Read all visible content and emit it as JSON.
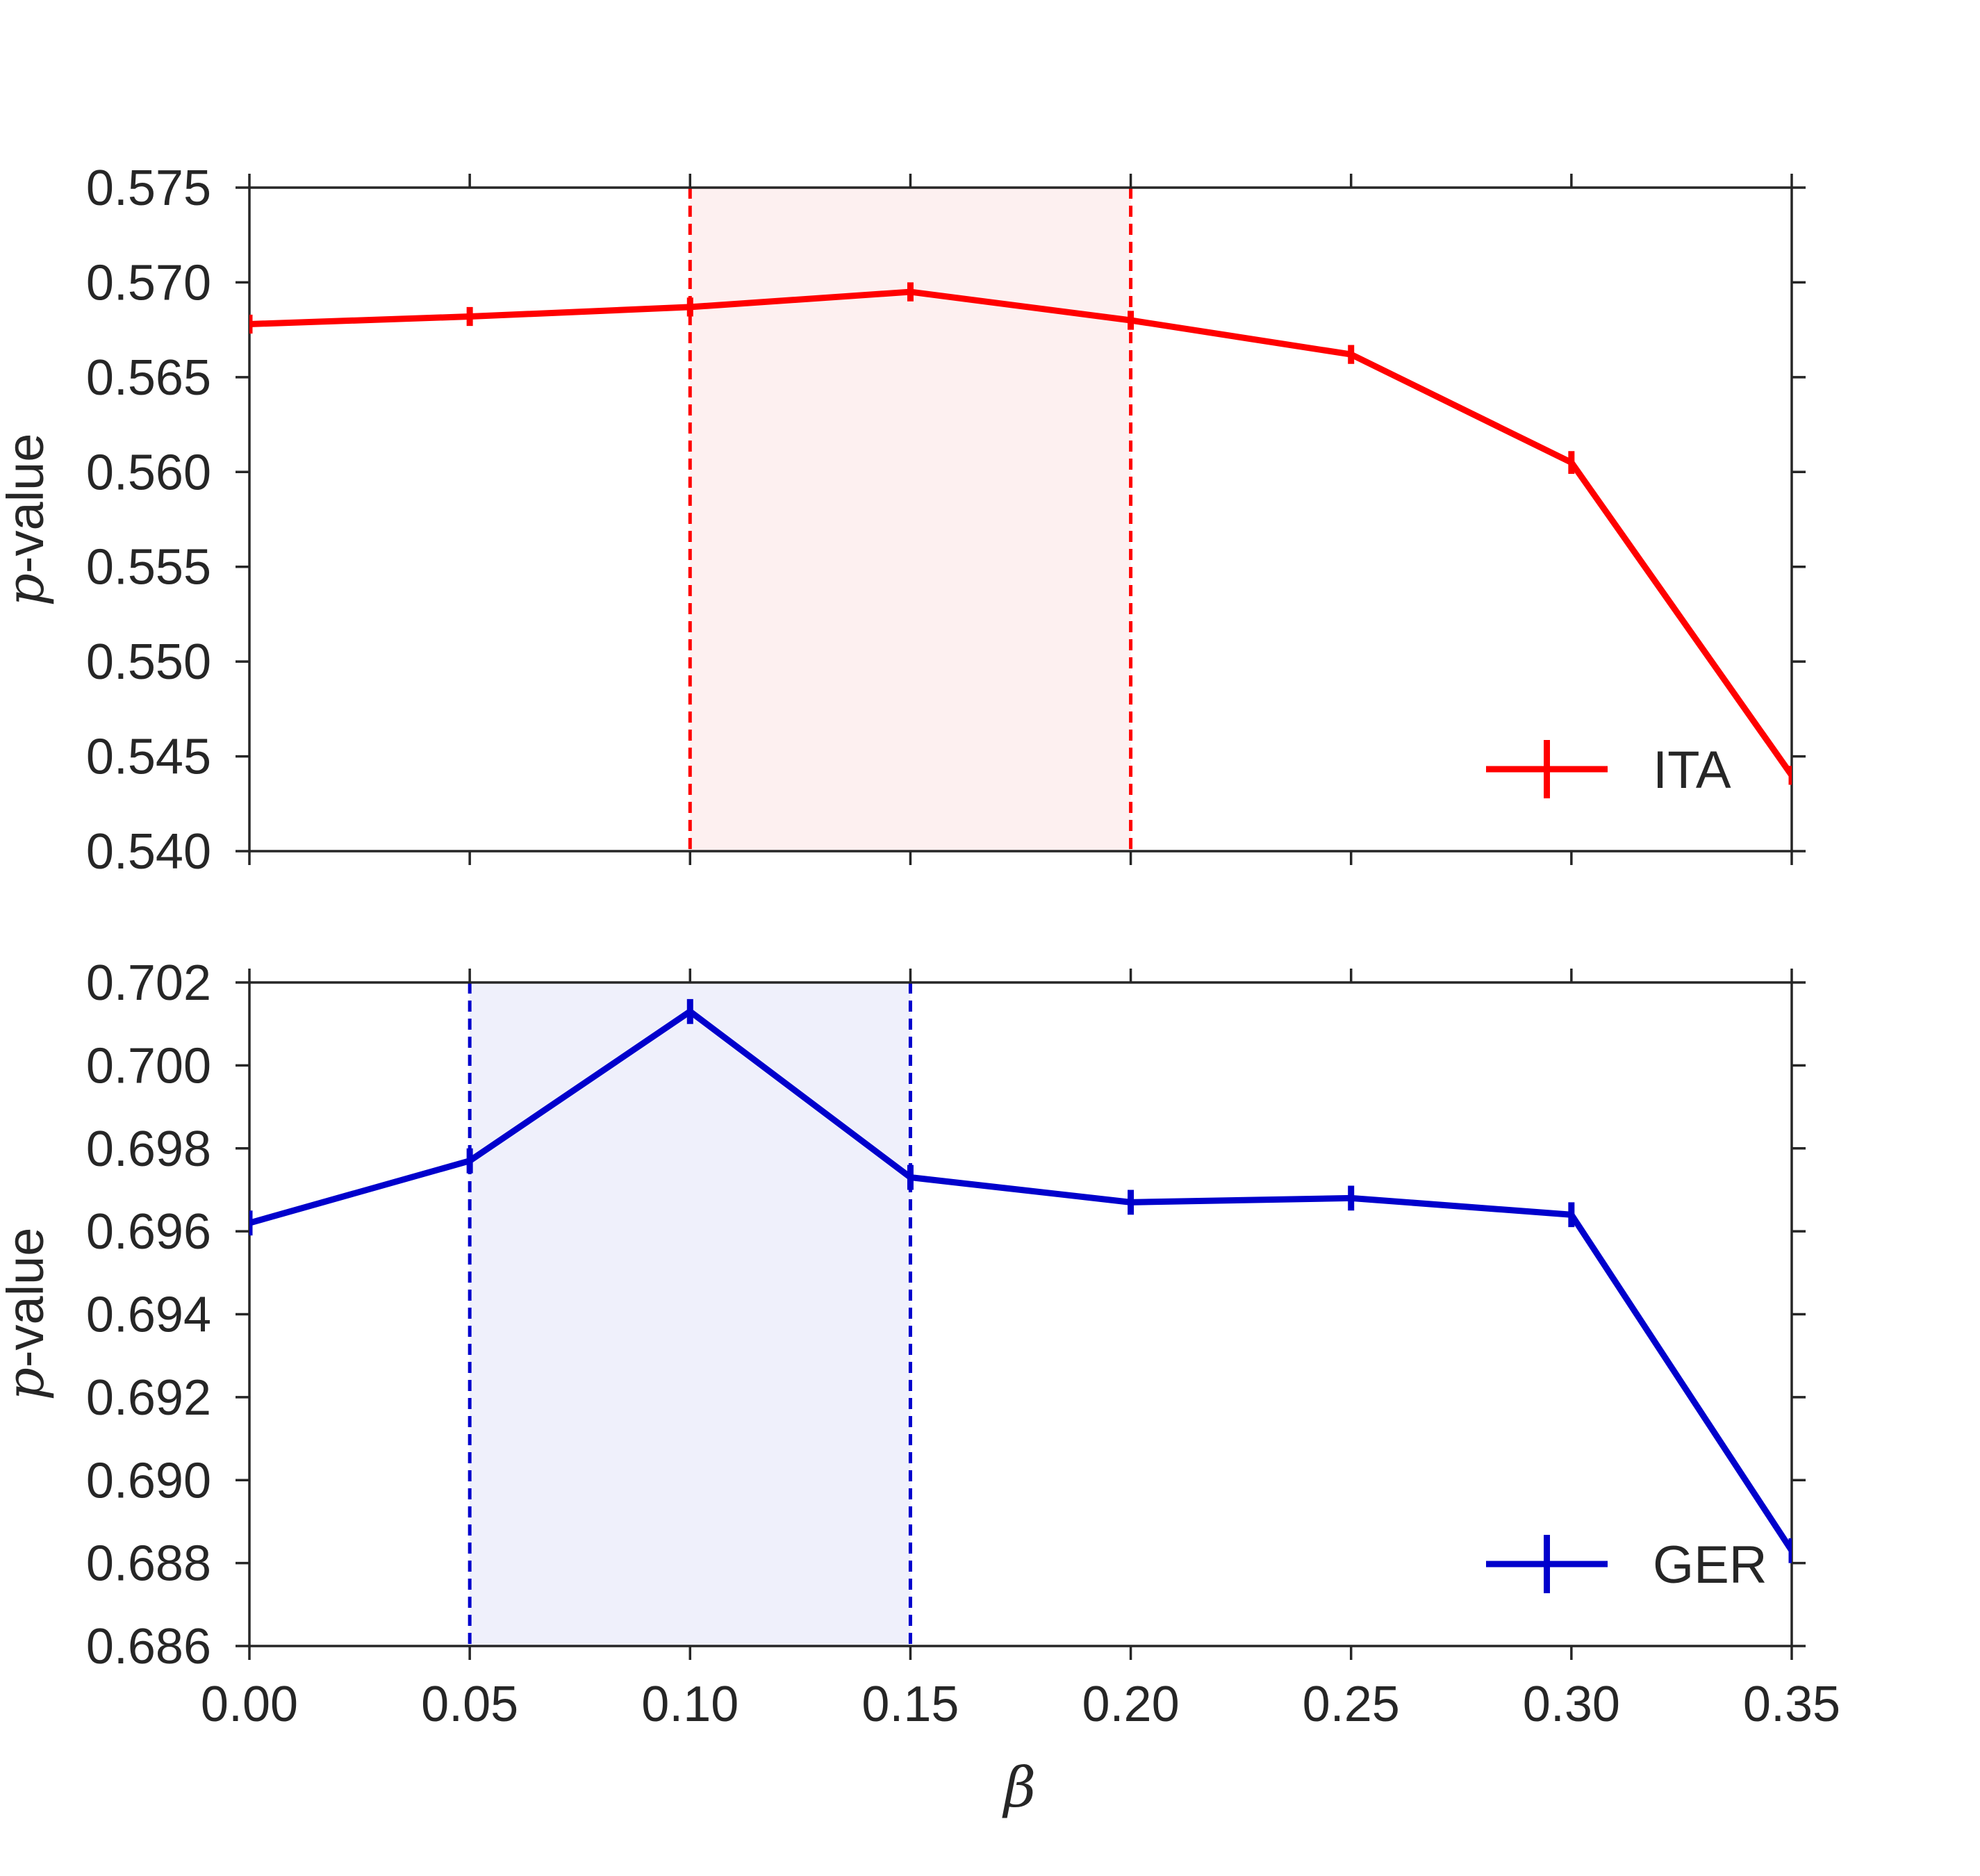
{
  "chart_data": [
    {
      "type": "line",
      "panel": "top",
      "xlabel": "",
      "ylabel_italic": "p",
      "ylabel_rest": "-value",
      "xlim": [
        0.0,
        0.35
      ],
      "ylim": [
        0.54,
        0.575
      ],
      "xticks": [
        "0.00",
        "0.05",
        "0.10",
        "0.15",
        "0.20",
        "0.25",
        "0.30",
        "0.35"
      ],
      "yticks": [
        "0.540",
        "0.545",
        "0.550",
        "0.555",
        "0.560",
        "0.565",
        "0.570",
        "0.575"
      ],
      "show_xtick_labels": false,
      "grid": false,
      "legend_position": "lower-right",
      "shaded_region": {
        "x0": 0.1,
        "x1": 0.2,
        "fill": "#fdf0f0",
        "line_color": "#ff0000"
      },
      "series": [
        {
          "name": "ITA",
          "color": "#ff0000",
          "x": [
            0.0,
            0.05,
            0.1,
            0.15,
            0.2,
            0.25,
            0.3,
            0.35
          ],
          "y": [
            0.5678,
            0.5682,
            0.5687,
            0.5695,
            0.568,
            0.5662,
            0.5605,
            0.544
          ],
          "yerr": [
            0.0005,
            0.0005,
            0.0005,
            0.0005,
            0.0005,
            0.0005,
            0.0006,
            0.0005
          ]
        }
      ]
    },
    {
      "type": "line",
      "panel": "bottom",
      "xlabel": "β",
      "ylabel_italic": "p",
      "ylabel_rest": "-value",
      "xlim": [
        0.0,
        0.35
      ],
      "ylim": [
        0.686,
        0.702
      ],
      "xticks": [
        "0.00",
        "0.05",
        "0.10",
        "0.15",
        "0.20",
        "0.25",
        "0.30",
        "0.35"
      ],
      "yticks": [
        "0.686",
        "0.688",
        "0.690",
        "0.692",
        "0.694",
        "0.696",
        "0.698",
        "0.700",
        "0.702"
      ],
      "show_xtick_labels": true,
      "grid": false,
      "legend_position": "lower-right",
      "shaded_region": {
        "x0": 0.05,
        "x1": 0.15,
        "fill": "#eff0fb",
        "line_color": "#0000cc"
      },
      "series": [
        {
          "name": "GER",
          "color": "#0000cc",
          "x": [
            0.0,
            0.05,
            0.1,
            0.15,
            0.2,
            0.25,
            0.3,
            0.35
          ],
          "y": [
            0.6962,
            0.6977,
            0.7013,
            0.6973,
            0.6967,
            0.6968,
            0.6964,
            0.6883
          ],
          "yerr": [
            0.0003,
            0.0003,
            0.0003,
            0.0003,
            0.0003,
            0.0003,
            0.0003,
            0.0003
          ]
        }
      ]
    }
  ]
}
